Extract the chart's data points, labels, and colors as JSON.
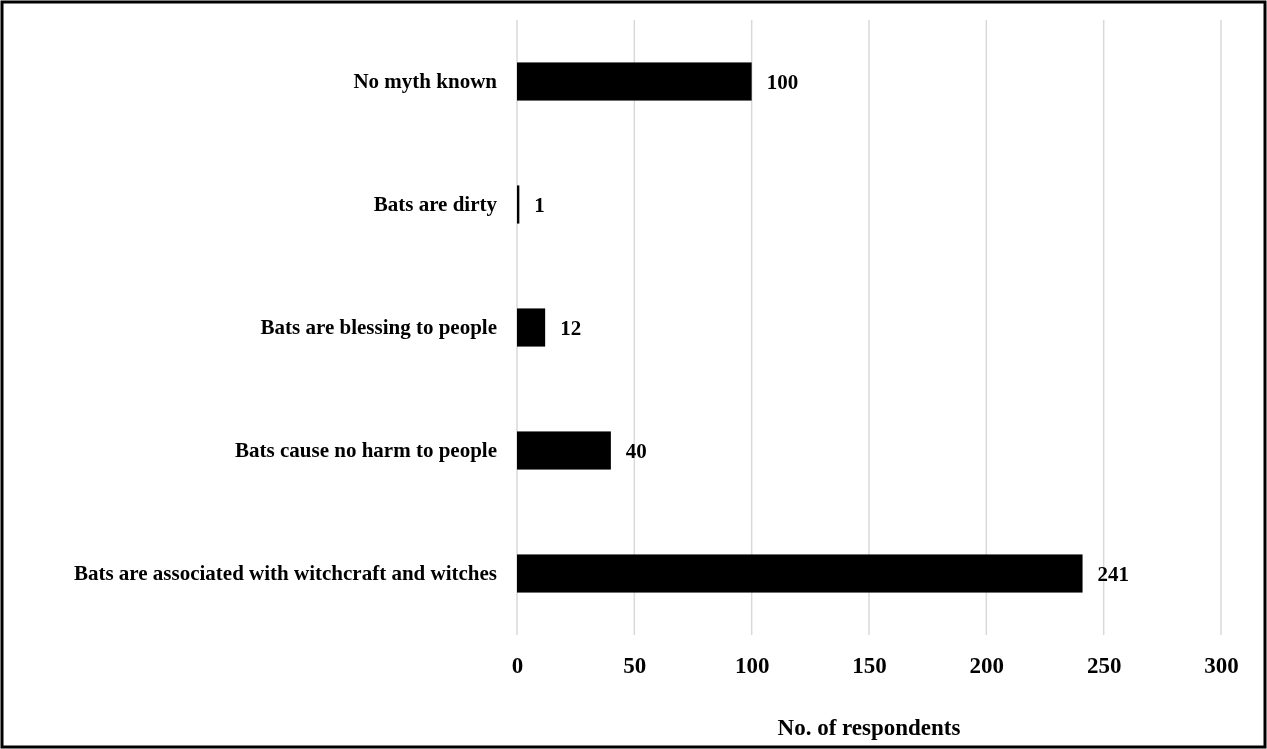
{
  "chart_data": {
    "type": "bar",
    "orientation": "horizontal",
    "xlabel": "No. of respondents",
    "categories": [
      "No myth known",
      "Bats are dirty",
      "Bats are blessing to people",
      "Bats cause no harm to people",
      "Bats are associated with witchcraft and witches"
    ],
    "values": [
      100,
      1,
      12,
      40,
      241
    ],
    "color": "#000000",
    "xlim": [
      0,
      300
    ],
    "xticks": [
      0,
      50,
      100,
      150,
      200,
      250,
      300
    ],
    "grid": "x",
    "data_labels": true
  }
}
